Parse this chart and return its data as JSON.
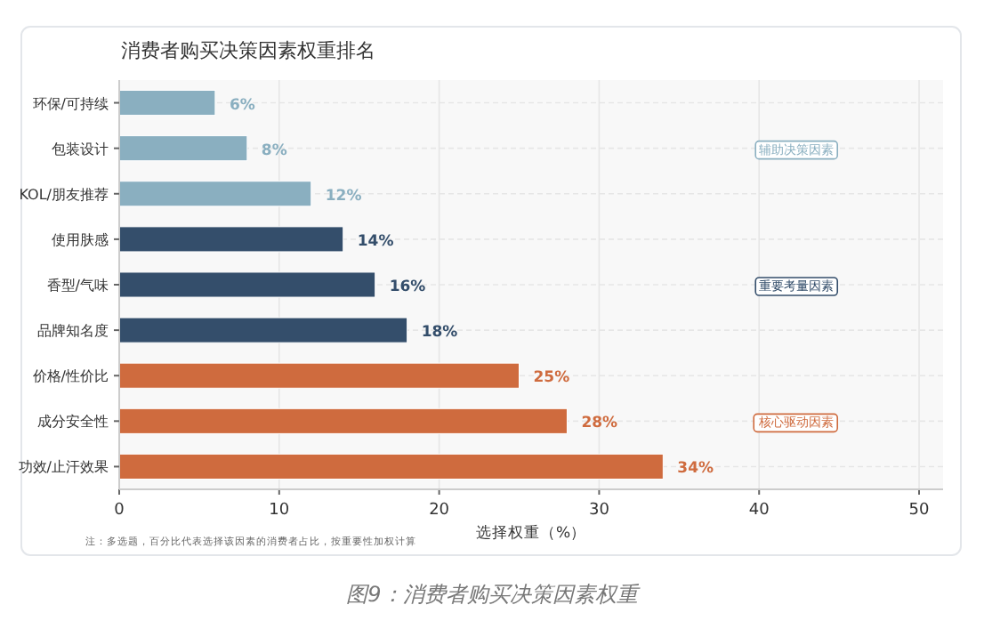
{
  "chart_data": {
    "type": "bar",
    "orientation": "horizontal",
    "title": "消费者购买决策因素权重排名",
    "categories": [
      "环保/可持续",
      "包装设计",
      "KOL/朋友推荐",
      "使用肤感",
      "香型/气味",
      "品牌知名度",
      "价格/性价比",
      "成分安全性",
      "功效/止汗效果"
    ],
    "values": [
      6,
      8,
      12,
      14,
      16,
      18,
      25,
      28,
      34
    ],
    "colors": [
      "#8aafc0",
      "#8aafc0",
      "#8aafc0",
      "#344e6b",
      "#344e6b",
      "#344e6b",
      "#cf6b3e",
      "#cf6b3e",
      "#cf6b3e"
    ],
    "value_labels": [
      "6%",
      "8%",
      "12%",
      "14%",
      "16%",
      "18%",
      "25%",
      "28%",
      "34%"
    ],
    "xlabel": "选择权重（%）",
    "xlim": [
      0,
      51.5
    ],
    "xticks": [
      0,
      10,
      20,
      30,
      40,
      50
    ],
    "grid": true,
    "annotations": [
      "辅助决策因素",
      "重要考量因素",
      "核心驱动因素",
      "注：多选题，百分比代表选择该因素的消费者占比，按重要性加权计算",
      "图9：消费者购买决策因素权重"
    ]
  }
}
